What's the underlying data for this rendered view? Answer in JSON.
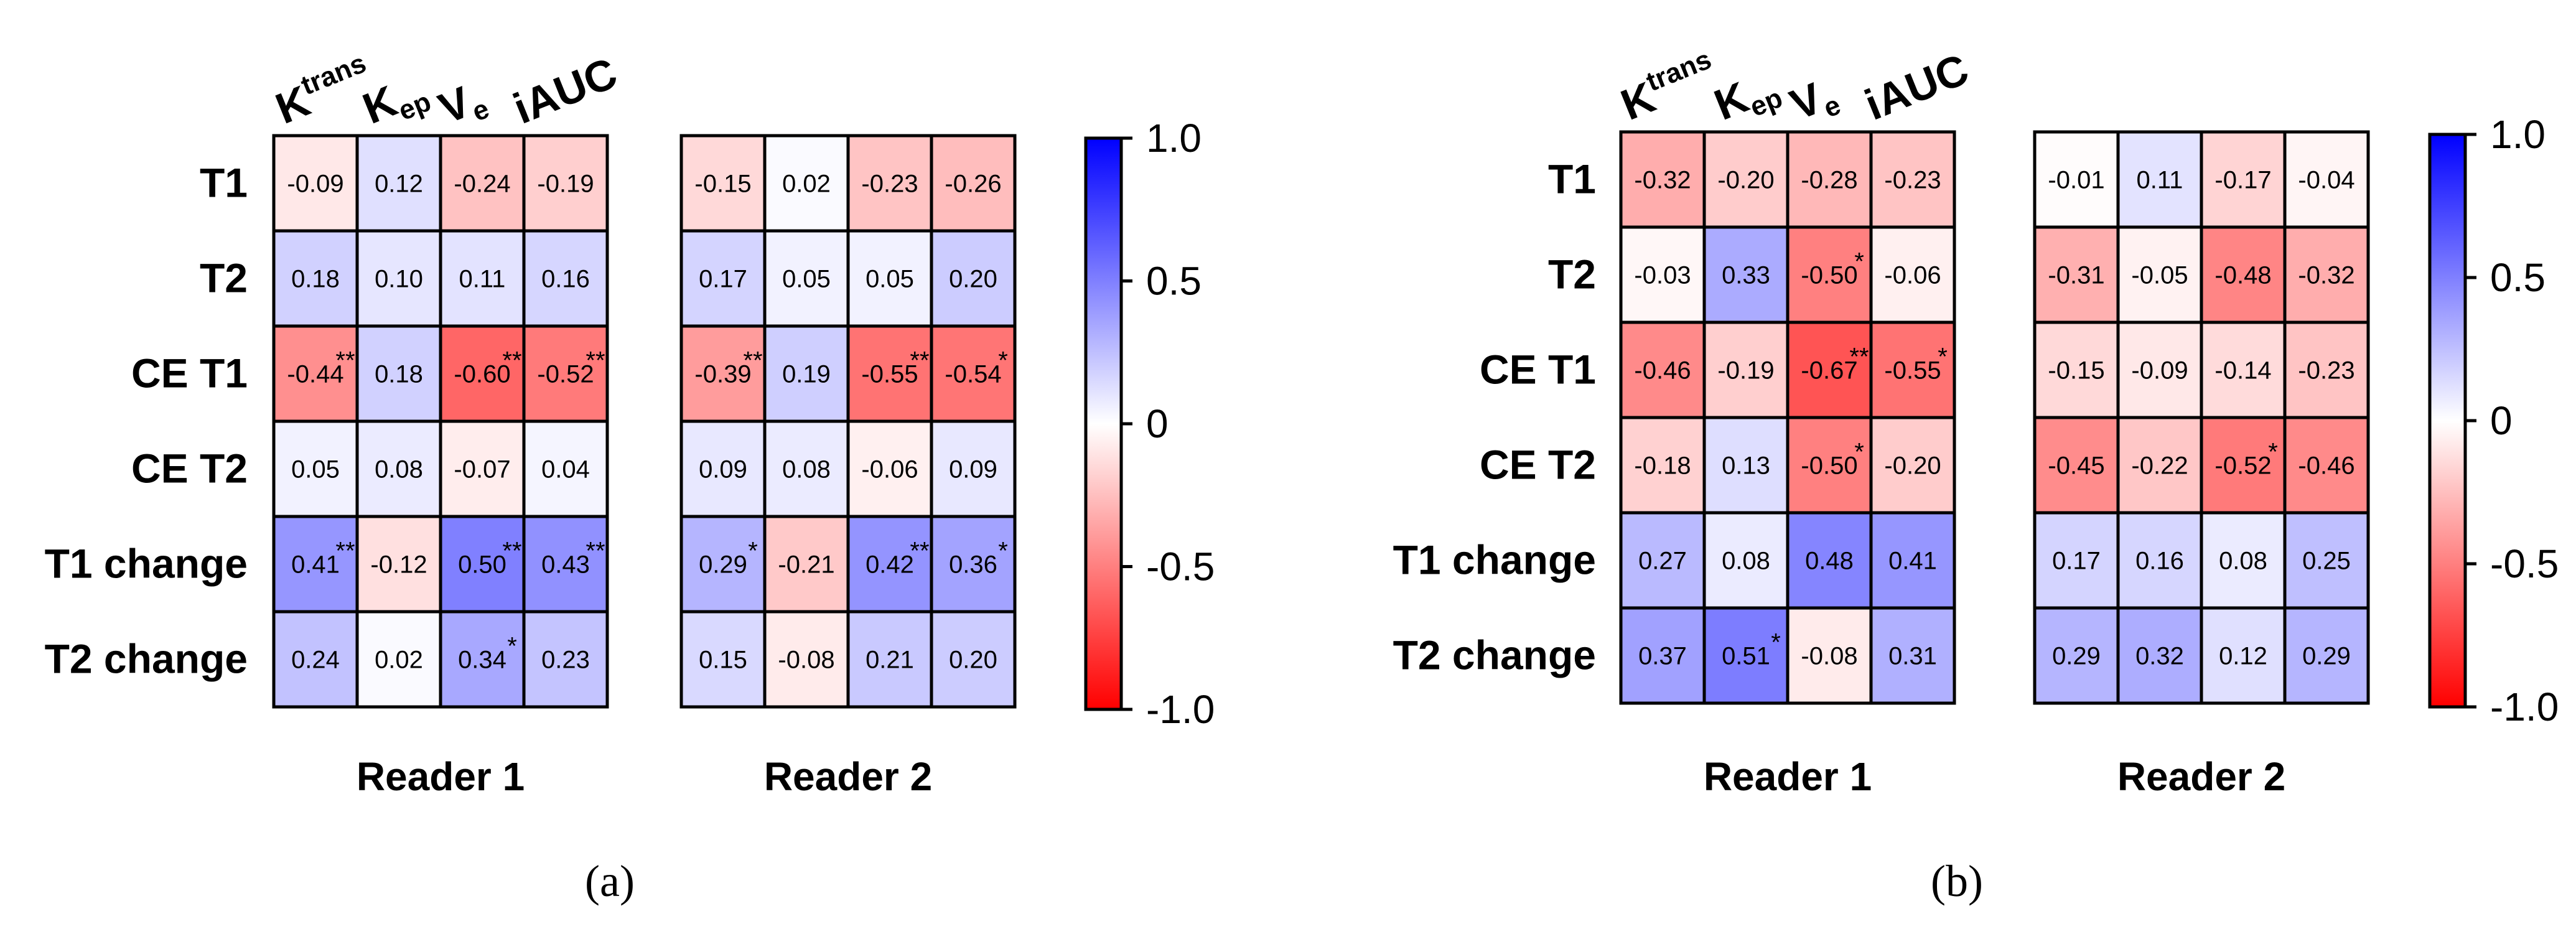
{
  "chart_data": [
    {
      "type": "heatmap",
      "panel_label": "(a)",
      "row_labels": [
        "T1",
        "T2",
        "CE T1",
        "CE T2",
        "T1 change",
        "T2 change"
      ],
      "column_labels": [
        {
          "base": "K",
          "sup": "trans",
          "sub": ""
        },
        {
          "base": "K",
          "sup": "",
          "sub": "ep"
        },
        {
          "base": "V",
          "sup": "",
          "sub": "e"
        },
        {
          "base": "iAUC",
          "sup": "",
          "sub": ""
        }
      ],
      "colorbar": {
        "min": -1.0,
        "max": 1.0,
        "ticks": [
          "1.0",
          "0.5",
          "0",
          "-0.5",
          "-1.0"
        ],
        "tick_values": [
          1.0,
          0.5,
          0,
          -0.5,
          -1.0
        ],
        "min_color": "#ff0000",
        "mid_color": "#ffffff",
        "max_color": "#0000ff"
      },
      "readers": [
        {
          "name": "Reader 1",
          "values": [
            [
              -0.09,
              0.12,
              -0.24,
              -0.19
            ],
            [
              0.18,
              0.1,
              0.11,
              0.16
            ],
            [
              -0.44,
              0.18,
              -0.6,
              -0.52
            ],
            [
              0.05,
              0.08,
              -0.07,
              0.04
            ],
            [
              0.41,
              -0.12,
              0.5,
              0.43
            ],
            [
              0.24,
              0.02,
              0.34,
              0.23
            ]
          ],
          "labels": [
            [
              "-0.09",
              "0.12",
              "-0.24",
              "-0.19"
            ],
            [
              "0.18",
              "0.10",
              "0.11",
              "0.16"
            ],
            [
              "-0.44",
              "0.18",
              "-0.60",
              "-0.52"
            ],
            [
              "0.05",
              "0.08",
              "-0.07",
              "0.04"
            ],
            [
              "0.41",
              "-0.12",
              "0.50",
              "0.43"
            ],
            [
              "0.24",
              "0.02",
              "0.34",
              "0.23"
            ]
          ],
          "stars": [
            [
              "",
              "",
              "",
              ""
            ],
            [
              "",
              "",
              "",
              ""
            ],
            [
              "**",
              "",
              "**",
              "**"
            ],
            [
              "",
              "",
              "",
              ""
            ],
            [
              "**",
              "",
              "**",
              "**"
            ],
            [
              "",
              "",
              "*",
              ""
            ]
          ]
        },
        {
          "name": "Reader 2",
          "values": [
            [
              -0.15,
              0.02,
              -0.23,
              -0.26
            ],
            [
              0.17,
              0.05,
              0.05,
              0.2
            ],
            [
              -0.39,
              0.19,
              -0.55,
              -0.54
            ],
            [
              0.09,
              0.08,
              -0.06,
              0.09
            ],
            [
              0.29,
              -0.21,
              0.42,
              0.36
            ],
            [
              0.15,
              -0.08,
              0.21,
              0.2
            ]
          ],
          "labels": [
            [
              "-0.15",
              "0.02",
              "-0.23",
              "-0.26"
            ],
            [
              "0.17",
              "0.05",
              "0.05",
              "0.20"
            ],
            [
              "-0.39",
              "0.19",
              "-0.55",
              "-0.54"
            ],
            [
              "0.09",
              "0.08",
              "-0.06",
              "0.09"
            ],
            [
              "0.29",
              "-0.21",
              "0.42",
              "0.36"
            ],
            [
              "0.15",
              "-0.08",
              "0.21",
              "0.20"
            ]
          ],
          "stars": [
            [
              "",
              "",
              "",
              ""
            ],
            [
              "",
              "",
              "",
              ""
            ],
            [
              "**",
              "",
              "**",
              "*"
            ],
            [
              "",
              "",
              "",
              ""
            ],
            [
              "*",
              "",
              "**",
              "*"
            ],
            [
              "",
              "",
              "",
              ""
            ]
          ]
        }
      ]
    },
    {
      "type": "heatmap",
      "panel_label": "(b)",
      "row_labels": [
        "T1",
        "T2",
        "CE T1",
        "CE T2",
        "T1 change",
        "T2 change"
      ],
      "column_labels": [
        {
          "base": "K",
          "sup": "trans",
          "sub": ""
        },
        {
          "base": "K",
          "sup": "",
          "sub": "ep"
        },
        {
          "base": "V",
          "sup": "",
          "sub": "e"
        },
        {
          "base": "iAUC",
          "sup": "",
          "sub": ""
        }
      ],
      "colorbar": {
        "min": -1.0,
        "max": 1.0,
        "ticks": [
          "1.0",
          "0.5",
          "0",
          "-0.5",
          "-1.0"
        ],
        "tick_values": [
          1.0,
          0.5,
          0,
          -0.5,
          -1.0
        ],
        "min_color": "#ff0000",
        "mid_color": "#ffffff",
        "max_color": "#0000ff"
      },
      "readers": [
        {
          "name": "Reader 1",
          "values": [
            [
              -0.32,
              -0.2,
              -0.28,
              -0.23
            ],
            [
              -0.03,
              0.33,
              -0.5,
              -0.06
            ],
            [
              -0.46,
              -0.19,
              -0.67,
              -0.55
            ],
            [
              -0.18,
              0.13,
              -0.5,
              -0.2
            ],
            [
              0.27,
              0.08,
              0.48,
              0.41
            ],
            [
              0.37,
              0.51,
              -0.08,
              0.31
            ]
          ],
          "labels": [
            [
              "-0.32",
              "-0.20",
              "-0.28",
              "-0.23"
            ],
            [
              "-0.03",
              "0.33",
              "-0.50",
              "-0.06"
            ],
            [
              "-0.46",
              "-0.19",
              "-0.67",
              "-0.55"
            ],
            [
              "-0.18",
              "0.13",
              "-0.50",
              "-0.20"
            ],
            [
              "0.27",
              "0.08",
              "0.48",
              "0.41"
            ],
            [
              "0.37",
              "0.51",
              "-0.08",
              "0.31"
            ]
          ],
          "stars": [
            [
              "",
              "",
              "",
              ""
            ],
            [
              "",
              "",
              "*",
              ""
            ],
            [
              "",
              "",
              "**",
              "*"
            ],
            [
              "",
              "",
              "*",
              ""
            ],
            [
              "",
              "",
              "",
              ""
            ],
            [
              "",
              "*",
              "",
              ""
            ]
          ]
        },
        {
          "name": "Reader 2",
          "values": [
            [
              -0.01,
              0.11,
              -0.17,
              -0.04
            ],
            [
              -0.31,
              -0.05,
              -0.48,
              -0.32
            ],
            [
              -0.15,
              -0.09,
              -0.14,
              -0.23
            ],
            [
              -0.45,
              -0.22,
              -0.52,
              -0.46
            ],
            [
              0.17,
              0.16,
              0.08,
              0.25
            ],
            [
              0.29,
              0.32,
              0.12,
              0.29
            ]
          ],
          "labels": [
            [
              "-0.01",
              "0.11",
              "-0.17",
              "-0.04"
            ],
            [
              "-0.31",
              "-0.05",
              "-0.48",
              "-0.32"
            ],
            [
              "-0.15",
              "-0.09",
              "-0.14",
              "-0.23"
            ],
            [
              "-0.45",
              "-0.22",
              "-0.52",
              "-0.46"
            ],
            [
              "0.17",
              "0.16",
              "0.08",
              "0.25"
            ],
            [
              "0.29",
              "0.32",
              "0.12",
              "0.29"
            ]
          ],
          "stars": [
            [
              "",
              "",
              "",
              ""
            ],
            [
              "",
              "",
              "",
              ""
            ],
            [
              "",
              "",
              "",
              ""
            ],
            [
              "",
              "",
              "*",
              ""
            ],
            [
              "",
              "",
              "",
              ""
            ],
            [
              "",
              "",
              "",
              ""
            ]
          ]
        }
      ]
    }
  ]
}
